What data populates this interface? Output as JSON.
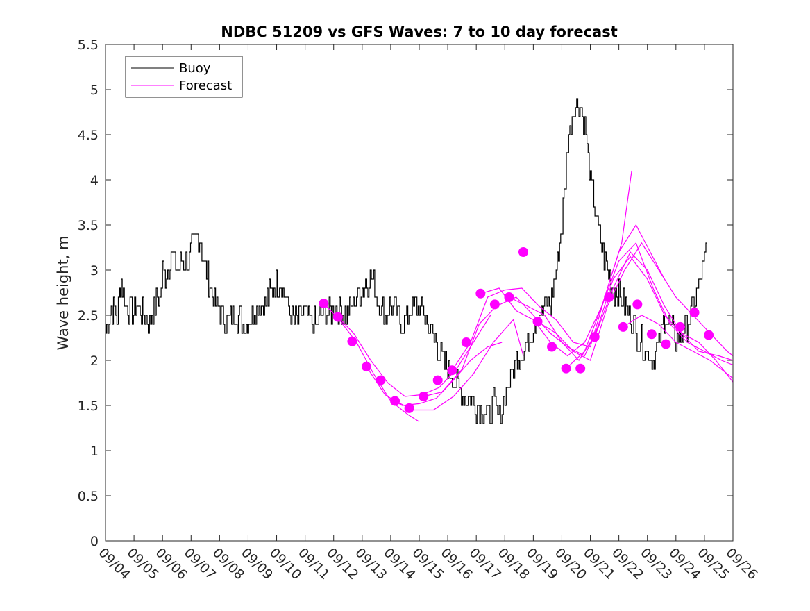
{
  "chart_data": {
    "type": "line",
    "title": "NDBC 51209 vs GFS Waves: 7 to 10 day forecast",
    "xlabel": "",
    "ylabel": "Wave height, m",
    "xlim": [
      0,
      22
    ],
    "ylim": [
      0,
      5.5
    ],
    "grid": false,
    "legend_position": "top-left",
    "x_tick_labels": [
      "09/04",
      "09/05",
      "09/06",
      "09/07",
      "09/08",
      "09/09",
      "09/10",
      "09/11",
      "09/12",
      "09/13",
      "09/14",
      "09/15",
      "09/16",
      "09/17",
      "09/18",
      "09/19",
      "09/20",
      "09/21",
      "09/22",
      "09/23",
      "09/24",
      "09/25",
      "09/26"
    ],
    "y_ticks": [
      0,
      0.5,
      1,
      1.5,
      2,
      2.5,
      3,
      3.5,
      4,
      4.5,
      5,
      5.5
    ],
    "y_tick_labels": [
      "0",
      "0.5",
      "1",
      "1.5",
      "2",
      "2.5",
      "3",
      "3.5",
      "4",
      "4.5",
      "5",
      "5.5"
    ],
    "series": [
      {
        "name": "Buoy",
        "color": "#000000",
        "x": [
          0,
          0.2,
          0.4,
          0.5,
          0.55,
          0.7,
          0.9,
          1.1,
          1.3,
          1.5,
          1.7,
          1.9,
          2.0,
          2.1,
          2.3,
          2.5,
          2.7,
          2.9,
          3.1,
          3.3,
          3.5,
          3.7,
          3.9,
          4.1,
          4.3,
          4.5,
          4.7,
          4.9,
          5.1,
          5.3,
          5.5,
          5.7,
          5.9,
          6.1,
          6.3,
          6.5,
          6.7,
          6.9,
          7.0,
          7.2,
          7.4,
          7.6,
          7.8,
          8.0,
          8.2,
          8.4,
          8.6,
          8.8,
          9.0,
          9.2,
          9.4,
          9.6,
          9.8,
          10.0,
          10.2,
          10.4,
          10.6,
          10.8,
          11.0,
          11.2,
          11.4,
          11.6,
          11.8,
          12.0,
          12.2,
          12.4,
          12.6,
          12.8,
          13.0,
          13.2,
          13.4,
          13.6,
          13.7,
          13.8,
          13.9,
          14.0,
          14.1,
          14.2,
          14.3,
          14.4,
          14.6,
          14.8,
          15.0,
          15.2,
          15.4,
          15.6,
          15.8,
          16.0,
          16.2,
          16.4,
          16.6,
          16.8,
          17.0,
          17.2,
          17.4,
          17.6,
          17.8,
          18.0,
          18.2,
          18.4,
          18.6,
          18.8,
          19.0,
          19.2,
          19.4,
          19.6,
          19.8,
          20.0,
          20.2,
          20.4,
          20.6,
          20.8,
          21.0,
          21.1
        ],
        "y": [
          2.3,
          2.6,
          2.5,
          2.7,
          2.9,
          2.6,
          2.5,
          2.6,
          2.5,
          2.4,
          2.6,
          2.7,
          3.0,
          2.9,
          3.2,
          3.0,
          3.1,
          3.1,
          3.3,
          3.4,
          3.0,
          2.8,
          2.6,
          2.5,
          2.4,
          2.5,
          2.5,
          2.4,
          2.5,
          2.6,
          2.6,
          2.7,
          2.8,
          2.9,
          2.7,
          2.5,
          2.4,
          2.5,
          2.5,
          2.4,
          2.4,
          2.5,
          2.5,
          2.6,
          2.6,
          2.5,
          2.6,
          2.7,
          2.8,
          2.9,
          2.9,
          2.6,
          2.5,
          2.6,
          2.5,
          2.4,
          2.5,
          2.6,
          2.6,
          2.5,
          2.3,
          2.2,
          2.0,
          1.9,
          1.8,
          1.7,
          1.6,
          1.6,
          1.5,
          1.5,
          1.4,
          1.5,
          1.4,
          1.4,
          1.5,
          1.6,
          1.7,
          1.8,
          1.9,
          2.0,
          2.1,
          2.2,
          2.4,
          2.5,
          2.6,
          2.6,
          3.0,
          3.5,
          4.4,
          4.8,
          4.9,
          4.6,
          4.0,
          3.6,
          3.2,
          3.0,
          2.8,
          2.7,
          2.6,
          2.5,
          2.3,
          2.2,
          2.1,
          2.0,
          2.2,
          2.5,
          2.4,
          2.2,
          2.3,
          2.4,
          2.6,
          2.8,
          3.1,
          3.3
        ]
      },
      {
        "name": "Forecast",
        "color": "#ff00ff",
        "marker_points": [
          {
            "x": 7.65,
            "y": 2.63
          },
          {
            "x": 8.15,
            "y": 2.48
          },
          {
            "x": 8.65,
            "y": 2.21
          },
          {
            "x": 9.15,
            "y": 1.93
          },
          {
            "x": 9.65,
            "y": 1.78
          },
          {
            "x": 10.15,
            "y": 1.55
          },
          {
            "x": 10.65,
            "y": 1.47
          },
          {
            "x": 11.15,
            "y": 1.6
          },
          {
            "x": 11.65,
            "y": 1.78
          },
          {
            "x": 12.15,
            "y": 1.89
          },
          {
            "x": 12.65,
            "y": 2.2
          },
          {
            "x": 13.15,
            "y": 2.74
          },
          {
            "x": 13.65,
            "y": 2.62
          },
          {
            "x": 14.15,
            "y": 2.7
          },
          {
            "x": 14.65,
            "y": 3.2
          },
          {
            "x": 15.15,
            "y": 2.43
          },
          {
            "x": 15.65,
            "y": 2.15
          },
          {
            "x": 16.15,
            "y": 1.91
          },
          {
            "x": 16.65,
            "y": 1.91
          },
          {
            "x": 17.15,
            "y": 2.26
          },
          {
            "x": 17.65,
            "y": 2.7
          },
          {
            "x": 18.15,
            "y": 2.37
          },
          {
            "x": 18.65,
            "y": 2.62
          },
          {
            "x": 19.15,
            "y": 2.29
          },
          {
            "x": 19.65,
            "y": 2.18
          },
          {
            "x": 20.15,
            "y": 2.37
          },
          {
            "x": 20.65,
            "y": 2.53
          },
          {
            "x": 21.15,
            "y": 2.28
          }
        ],
        "runs": [
          {
            "x": [
              7.65,
              8.2,
              8.8,
              9.4,
              10.0,
              10.6,
              11.0
            ],
            "y": [
              2.63,
              2.45,
              2.2,
              1.85,
              1.55,
              1.4,
              1.32
            ]
          },
          {
            "x": [
              8.15,
              8.7,
              9.3,
              9.9,
              10.5,
              11.1,
              11.7,
              12.3,
              12.9,
              13.5
            ],
            "y": [
              2.48,
              2.3,
              2.0,
              1.75,
              1.6,
              1.62,
              1.7,
              1.9,
              2.2,
              2.5
            ]
          },
          {
            "x": [
              9.15,
              9.8,
              10.4,
              11.0,
              11.6,
              12.2,
              12.8,
              13.4,
              13.9
            ],
            "y": [
              1.93,
              1.62,
              1.5,
              1.52,
              1.58,
              1.78,
              2.0,
              2.15,
              2.2
            ]
          },
          {
            "x": [
              10.15,
              10.8,
              11.5,
              12.2,
              12.9,
              13.6,
              14.3,
              14.65
            ],
            "y": [
              1.55,
              1.45,
              1.45,
              1.6,
              1.85,
              2.2,
              2.45,
              2.05
            ]
          },
          {
            "x": [
              11.15,
              11.8,
              12.5,
              13.1,
              13.7,
              14.4,
              15.0,
              15.6,
              16.2,
              16.8,
              17.3
            ],
            "y": [
              1.6,
              1.65,
              1.9,
              2.4,
              2.6,
              2.7,
              2.5,
              2.3,
              2.15,
              2.05,
              2.4
            ]
          },
          {
            "x": [
              12.15,
              12.8,
              13.4,
              14.0,
              14.6,
              15.2,
              15.8,
              16.4,
              17.0,
              17.6,
              18.1,
              18.45
            ],
            "y": [
              1.89,
              2.2,
              2.7,
              2.78,
              2.8,
              2.6,
              2.45,
              2.2,
              2.15,
              2.8,
              3.3,
              4.1
            ]
          },
          {
            "x": [
              13.15,
              13.8,
              14.4,
              15.0,
              15.6,
              16.2,
              16.8,
              17.4,
              18.0,
              18.6,
              19.1,
              19.6
            ],
            "y": [
              2.74,
              2.8,
              2.55,
              2.45,
              2.2,
              2.05,
              2.2,
              2.6,
              3.2,
              3.5,
              3.2,
              2.9
            ]
          },
          {
            "x": [
              14.15,
              14.8,
              15.4,
              16.0,
              16.6,
              17.2,
              17.8,
              18.4,
              19.0,
              19.6,
              20.2,
              20.8,
              21.5,
              22.0
            ],
            "y": [
              2.7,
              2.6,
              2.5,
              2.2,
              2.0,
              2.3,
              2.8,
              3.2,
              3.0,
              2.6,
              2.3,
              2.1,
              2.05,
              2.0
            ]
          },
          {
            "x": [
              15.15,
              15.8,
              16.4,
              17.0,
              17.6,
              18.2,
              18.8,
              19.4,
              20.0,
              20.6,
              21.2,
              21.8,
              22.0
            ],
            "y": [
              2.43,
              2.3,
              2.1,
              2.0,
              2.6,
              3.0,
              3.3,
              3.0,
              2.7,
              2.5,
              2.3,
              2.1,
              2.05
            ]
          },
          {
            "x": [
              16.15,
              16.8,
              17.4,
              18.0,
              18.6,
              19.2,
              19.8,
              20.4,
              21.0,
              21.6,
              22.0
            ],
            "y": [
              1.91,
              2.1,
              2.6,
              3.1,
              3.3,
              2.8,
              2.4,
              2.2,
              2.1,
              2.0,
              1.95
            ]
          },
          {
            "x": [
              17.15,
              17.8,
              18.4,
              19.0,
              19.6,
              20.2,
              20.8,
              21.4,
              22.0
            ],
            "y": [
              2.26,
              2.9,
              3.15,
              2.9,
              2.5,
              2.3,
              2.2,
              2.0,
              1.76
            ]
          },
          {
            "x": [
              18.15,
              18.8,
              19.4,
              20.0,
              20.6,
              21.2,
              21.8,
              22.0
            ],
            "y": [
              2.37,
              2.5,
              2.4,
              2.2,
              2.1,
              2.0,
              1.85,
              1.8
            ]
          }
        ]
      }
    ]
  }
}
